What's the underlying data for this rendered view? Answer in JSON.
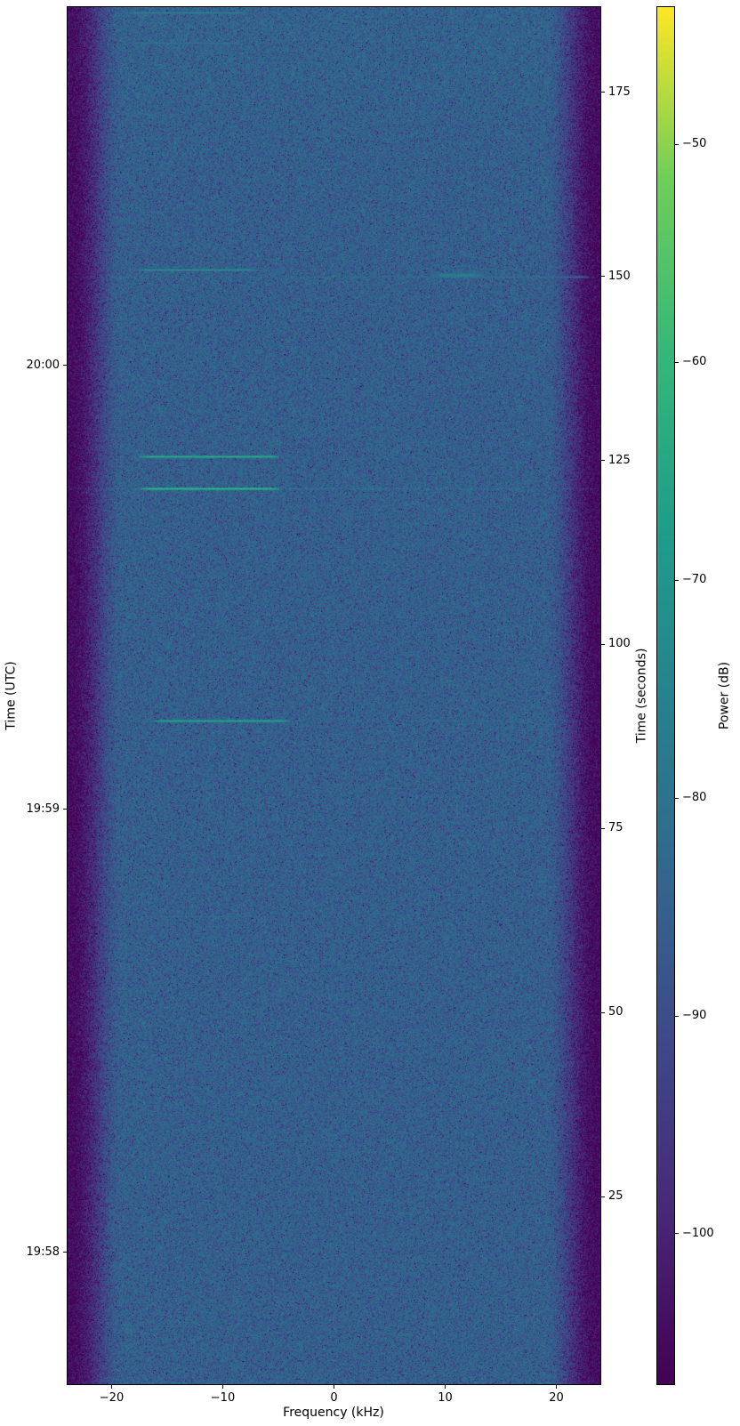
{
  "figure": {
    "background": "#ffffff",
    "text_color": "#000000"
  },
  "chart_data": {
    "type": "heatmap",
    "subtype": "spectrogram-waterfall",
    "title": "",
    "colormap": "viridis",
    "xlabel": "Frequency (kHz)",
    "ylabel_left": "Time (UTC)",
    "ylabel_right": "Time (seconds)",
    "colorbar_label": "Power (dB)",
    "xlim_khz": [
      -23.96,
      23.96
    ],
    "x_ticks": [
      {
        "value": -20,
        "label": "−20"
      },
      {
        "value": -10,
        "label": "−10"
      },
      {
        "value": 0,
        "label": "0"
      },
      {
        "value": 10,
        "label": "10"
      },
      {
        "value": 20,
        "label": "20"
      }
    ],
    "ylim_seconds": [
      -0.5,
      186.6
    ],
    "y_ticks_seconds": [
      {
        "value": 25,
        "label": "25"
      },
      {
        "value": 50,
        "label": "50"
      },
      {
        "value": 75,
        "label": "75"
      },
      {
        "value": 100,
        "label": "100"
      },
      {
        "value": 125,
        "label": "125"
      },
      {
        "value": 150,
        "label": "150"
      },
      {
        "value": 175,
        "label": "175"
      }
    ],
    "y_ticks_utc": [
      {
        "seconds": 17.4,
        "label": "19:58"
      },
      {
        "seconds": 77.6,
        "label": "19:59"
      },
      {
        "seconds": 137.9,
        "label": "20:00"
      }
    ],
    "colorbar": {
      "vmin_db": -106.9,
      "vmax_db": -43.7,
      "ticks": [
        {
          "value": -50,
          "label": "−50"
        },
        {
          "value": -60,
          "label": "−60"
        },
        {
          "value": -70,
          "label": "−70"
        },
        {
          "value": -80,
          "label": "−80"
        },
        {
          "value": -90,
          "label": "−90"
        },
        {
          "value": -100,
          "label": "−100"
        }
      ]
    },
    "colormap_stops_rgb": [
      [
        68,
        1,
        84
      ],
      [
        72,
        40,
        120
      ],
      [
        62,
        73,
        137
      ],
      [
        49,
        104,
        142
      ],
      [
        38,
        130,
        142
      ],
      [
        31,
        158,
        137
      ],
      [
        53,
        183,
        121
      ],
      [
        110,
        206,
        88
      ],
      [
        253,
        231,
        37
      ]
    ],
    "noise_model": {
      "base_db": -83.5,
      "edge_start_khz": 19.0,
      "edge_width_khz": 4.6,
      "edge_depth_db": -20,
      "speckle_scale": 0.85,
      "top_glow_db": 0.9,
      "top_glow_start_s": 165,
      "seed": 42
    },
    "signals": [
      {
        "t": 185.9,
        "f1": -18.5,
        "f2": -7.7,
        "power_db": -73,
        "blob": false
      },
      {
        "t": 181.8,
        "f1": -18.5,
        "f2": -8.2,
        "power_db": -78,
        "blob": false
      },
      {
        "t": 150.9,
        "f1": -17.7,
        "f2": -7.0,
        "power_db": -70,
        "blob": false
      },
      {
        "t": 150.2,
        "f1": 8.6,
        "f2": 13.5,
        "power_db": -75,
        "blob": true
      },
      {
        "t": 150.0,
        "f1": 6.0,
        "f2": 22.8,
        "power_db": -81,
        "blob": false
      },
      {
        "t": 125.6,
        "f1": -17.6,
        "f2": -5.0,
        "power_db": -62,
        "blob": false
      },
      {
        "t": 121.2,
        "f1": -17.4,
        "f2": -5.0,
        "power_db": -59,
        "blob": false
      },
      {
        "t": 89.7,
        "f1": -16.2,
        "f2": -4.1,
        "power_db": -64,
        "blob": false
      },
      {
        "t": 89.7,
        "f1": 6.2,
        "f2": 15.4,
        "power_db": -82,
        "blob": false
      },
      {
        "t": 63.1,
        "f1": -17.0,
        "f2": -7.0,
        "power_db": -81,
        "blob": false
      }
    ],
    "row_boosts": [
      {
        "t": 121.2,
        "boost_db": 3.2
      },
      {
        "t": 150.0,
        "boost_db": 2.0
      },
      {
        "t": 89.7,
        "boost_db": 1.2
      }
    ]
  }
}
